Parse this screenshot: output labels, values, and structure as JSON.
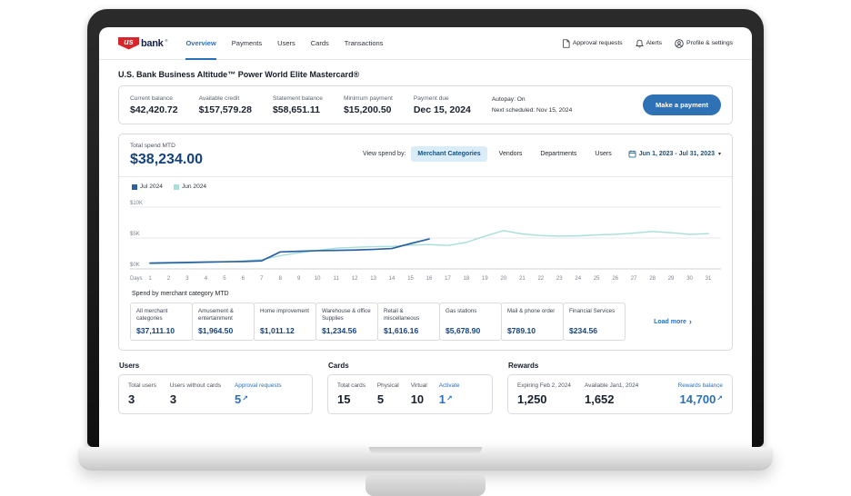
{
  "nav": {
    "logo_us": "us",
    "logo_bank": "bank",
    "items": [
      {
        "label": "Overview",
        "active": true
      },
      {
        "label": "Payments",
        "active": false
      },
      {
        "label": "Users",
        "active": false
      },
      {
        "label": "Cards",
        "active": false
      },
      {
        "label": "Transactions",
        "active": false
      }
    ],
    "actions": [
      {
        "label": "Approval requests"
      },
      {
        "label": "Alerts"
      },
      {
        "label": "Profile & settings"
      }
    ]
  },
  "page": {
    "title": "U.S. Bank Business Altitude™ Power World Elite Mastercard®"
  },
  "balance_panel": {
    "stats": [
      {
        "label": "Current balance",
        "value": "$42,420.72"
      },
      {
        "label": "Available credit",
        "value": "$157,579.28"
      },
      {
        "label": "Statement balance",
        "value": "$58,651.11"
      },
      {
        "label": "Minimum payment",
        "value": "$15,200.50"
      },
      {
        "label": "Payment due",
        "value": "Dec 15, 2024"
      }
    ],
    "autopay_line1": "Autopay: On",
    "autopay_line2": "Next scheduled: Nov 15, 2024",
    "button": "Make a payment"
  },
  "spend": {
    "label": "Total spend MTD",
    "total": "$38,234.00",
    "view_by_label": "View spend by:",
    "tabs": [
      {
        "label": "Merchant Categories",
        "active": true
      },
      {
        "label": "Vendors",
        "active": false
      },
      {
        "label": "Departments",
        "active": false
      },
      {
        "label": "Users",
        "active": false
      }
    ],
    "date_range": "Jun 1, 2023 - Jul 31, 2023",
    "category_label": "Spend by merchant category MTD",
    "categories": [
      {
        "label": "All merchant categories",
        "value": "$37,111.10"
      },
      {
        "label": "Amusement & entertainment",
        "value": "$1,964.50"
      },
      {
        "label": "Home improvement",
        "value": "$1,011.12"
      },
      {
        "label": "Warehouse & office Supplies",
        "value": "$1,234.56"
      },
      {
        "label": "Retail & miscellaneous",
        "value": "$1,616.16"
      },
      {
        "label": "Gas stations",
        "value": "$5,678.90"
      },
      {
        "label": "Mail & phone order",
        "value": "$789.10"
      },
      {
        "label": "Financial Services",
        "value": "$234.56"
      }
    ],
    "load_more": "Load more"
  },
  "chart_data": {
    "type": "line",
    "title": "Total spend MTD",
    "xlabel": "Days",
    "x": [
      1,
      2,
      3,
      4,
      5,
      6,
      7,
      8,
      9,
      10,
      11,
      12,
      13,
      14,
      15,
      16,
      17,
      18,
      19,
      20,
      21,
      22,
      23,
      24,
      25,
      26,
      27,
      28,
      29,
      30,
      31
    ],
    "ylim": [
      0,
      10000
    ],
    "yticks": [
      {
        "label": "$0K",
        "value": 0
      },
      {
        "label": "$5K",
        "value": 5000
      },
      {
        "label": "$10K",
        "value": 10000
      }
    ],
    "grid": "horizontal",
    "legend_position": "top-left",
    "series": [
      {
        "name": "Jul 2024",
        "color": "#2d62a0",
        "values": [
          950,
          1000,
          1050,
          1100,
          1150,
          1200,
          1300,
          2750,
          2850,
          2950,
          3000,
          3050,
          3150,
          3300,
          4100,
          4850
        ]
      },
      {
        "name": "Jun 2024",
        "color": "#a6ded9",
        "values": [
          800,
          880,
          950,
          1050,
          1150,
          1300,
          1500,
          2150,
          2600,
          3000,
          3350,
          3500,
          3600,
          3650,
          3850,
          3950,
          3800,
          4300,
          5300,
          6200,
          5650,
          5400,
          5300,
          5350,
          5500,
          5600,
          5800,
          6050,
          5850,
          5600,
          5700
        ]
      }
    ]
  },
  "users_section": {
    "title": "Users",
    "stats": [
      {
        "label": "Total users",
        "value": "3"
      },
      {
        "label": "Users without cards",
        "value": "3"
      }
    ],
    "link": {
      "label": "Approval requests",
      "value": "5"
    }
  },
  "cards_section": {
    "title": "Cards",
    "stats": [
      {
        "label": "Total cards",
        "value": "15"
      },
      {
        "label": "Physical",
        "value": "5"
      },
      {
        "label": "Virtual",
        "value": "10"
      }
    ],
    "link": {
      "label": "Activate",
      "value": "1"
    }
  },
  "rewards_section": {
    "title": "Rewards",
    "stats": [
      {
        "label": "Expiring Feb 2, 2024",
        "value": "1,250"
      },
      {
        "label": "Available Jan1, 2024",
        "value": "1,652"
      }
    ],
    "link": {
      "label": "Rewards balance",
      "value": "14,700"
    }
  },
  "icons": {
    "external_arrow": "↗",
    "caret_down": "▾",
    "chevron_right": "›"
  },
  "colors": {
    "brand_red": "#d7252c",
    "button_blue": "#2e71b5",
    "link_blue": "#2a70b8",
    "navy": "#14427c",
    "tab_active_bg": "#d9ecf8",
    "jul_line": "#2d62a0",
    "jun_line": "#a6ded9"
  }
}
